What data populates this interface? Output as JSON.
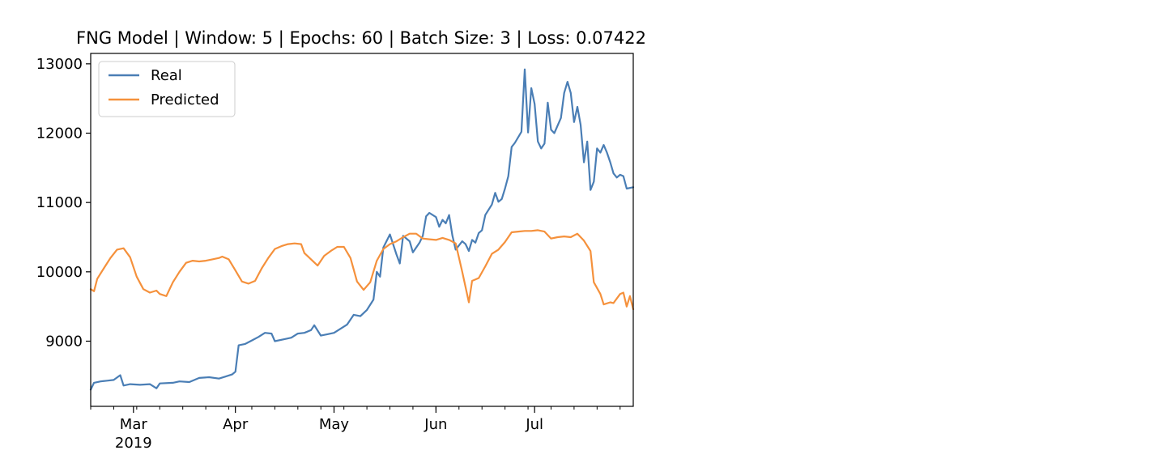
{
  "chart_data": {
    "type": "line",
    "title": "FNG Model | Window: 5 | Epochs: 60 | Batch Size: 3 | Loss: 0.07422",
    "xlabel": "",
    "ylabel": "",
    "x_range": [
      "2019-02-16",
      "2019-07-31"
    ],
    "ylim": [
      8060,
      13150
    ],
    "y_ticks": [
      {
        "value": 9000,
        "label": "9000"
      },
      {
        "value": 10000,
        "label": "10000"
      },
      {
        "value": 11000,
        "label": "11000"
      },
      {
        "value": 12000,
        "label": "12000"
      },
      {
        "value": 13000,
        "label": "13000"
      }
    ],
    "x_major_ticks": [
      {
        "date": "2019-03-01",
        "label": "Mar",
        "sublabel": "2019"
      },
      {
        "date": "2019-04-01",
        "label": "Apr",
        "sublabel": ""
      },
      {
        "date": "2019-05-01",
        "label": "May",
        "sublabel": ""
      },
      {
        "date": "2019-06-01",
        "label": "Jun",
        "sublabel": ""
      },
      {
        "date": "2019-07-01",
        "label": "Jul",
        "sublabel": ""
      }
    ],
    "grid": false,
    "legend_position": "top-left",
    "series": [
      {
        "name": "Real",
        "color": "#4a7eb5",
        "points": [
          [
            "2019-02-16",
            8300
          ],
          [
            "2019-02-17",
            8400
          ],
          [
            "2019-02-19",
            8420
          ],
          [
            "2019-02-21",
            8430
          ],
          [
            "2019-02-23",
            8440
          ],
          [
            "2019-02-25",
            8510
          ],
          [
            "2019-02-26",
            8360
          ],
          [
            "2019-02-28",
            8380
          ],
          [
            "2019-03-03",
            8370
          ],
          [
            "2019-03-06",
            8380
          ],
          [
            "2019-03-08",
            8320
          ],
          [
            "2019-03-09",
            8390
          ],
          [
            "2019-03-13",
            8400
          ],
          [
            "2019-03-15",
            8420
          ],
          [
            "2019-03-18",
            8410
          ],
          [
            "2019-03-21",
            8470
          ],
          [
            "2019-03-24",
            8480
          ],
          [
            "2019-03-27",
            8460
          ],
          [
            "2019-03-29",
            8490
          ],
          [
            "2019-03-31",
            8520
          ],
          [
            "2019-04-01",
            8560
          ],
          [
            "2019-04-02",
            8940
          ],
          [
            "2019-04-04",
            8960
          ],
          [
            "2019-04-06",
            9010
          ],
          [
            "2019-04-08",
            9060
          ],
          [
            "2019-04-10",
            9120
          ],
          [
            "2019-04-12",
            9110
          ],
          [
            "2019-04-13",
            9000
          ],
          [
            "2019-04-16",
            9030
          ],
          [
            "2019-04-18",
            9050
          ],
          [
            "2019-04-20",
            9110
          ],
          [
            "2019-04-22",
            9120
          ],
          [
            "2019-04-24",
            9160
          ],
          [
            "2019-04-25",
            9230
          ],
          [
            "2019-04-27",
            9080
          ],
          [
            "2019-04-29",
            9100
          ],
          [
            "2019-05-01",
            9120
          ],
          [
            "2019-05-03",
            9180
          ],
          [
            "2019-05-05",
            9240
          ],
          [
            "2019-05-07",
            9380
          ],
          [
            "2019-05-09",
            9360
          ],
          [
            "2019-05-11",
            9450
          ],
          [
            "2019-05-13",
            9600
          ],
          [
            "2019-05-14",
            10000
          ],
          [
            "2019-05-15",
            9930
          ],
          [
            "2019-05-16",
            10350
          ],
          [
            "2019-05-18",
            10540
          ],
          [
            "2019-05-20",
            10250
          ],
          [
            "2019-05-21",
            10120
          ],
          [
            "2019-05-22",
            10520
          ],
          [
            "2019-05-24",
            10440
          ],
          [
            "2019-05-25",
            10280
          ],
          [
            "2019-05-27",
            10420
          ],
          [
            "2019-05-28",
            10520
          ],
          [
            "2019-05-29",
            10800
          ],
          [
            "2019-05-30",
            10850
          ],
          [
            "2019-06-01",
            10790
          ],
          [
            "2019-06-02",
            10650
          ],
          [
            "2019-06-03",
            10750
          ],
          [
            "2019-06-04",
            10700
          ],
          [
            "2019-06-05",
            10820
          ],
          [
            "2019-06-06",
            10520
          ],
          [
            "2019-06-07",
            10320
          ],
          [
            "2019-06-09",
            10440
          ],
          [
            "2019-06-10",
            10400
          ],
          [
            "2019-06-11",
            10300
          ],
          [
            "2019-06-12",
            10460
          ],
          [
            "2019-06-13",
            10420
          ],
          [
            "2019-06-14",
            10560
          ],
          [
            "2019-06-15",
            10600
          ],
          [
            "2019-06-16",
            10820
          ],
          [
            "2019-06-18",
            10970
          ],
          [
            "2019-06-19",
            11140
          ],
          [
            "2019-06-20",
            11010
          ],
          [
            "2019-06-21",
            11050
          ],
          [
            "2019-06-22",
            11200
          ],
          [
            "2019-06-23",
            11380
          ],
          [
            "2019-06-24",
            11800
          ],
          [
            "2019-06-25",
            11860
          ],
          [
            "2019-06-27",
            12020
          ],
          [
            "2019-06-28",
            12920
          ],
          [
            "2019-06-29",
            12010
          ],
          [
            "2019-06-30",
            12650
          ],
          [
            "2019-07-01",
            12420
          ],
          [
            "2019-07-02",
            11880
          ],
          [
            "2019-07-03",
            11780
          ],
          [
            "2019-07-04",
            11850
          ],
          [
            "2019-07-05",
            12440
          ],
          [
            "2019-07-06",
            12050
          ],
          [
            "2019-07-07",
            12000
          ],
          [
            "2019-07-09",
            12220
          ],
          [
            "2019-07-10",
            12580
          ],
          [
            "2019-07-11",
            12740
          ],
          [
            "2019-07-12",
            12580
          ],
          [
            "2019-07-13",
            12160
          ],
          [
            "2019-07-14",
            12380
          ],
          [
            "2019-07-15",
            12120
          ],
          [
            "2019-07-16",
            11580
          ],
          [
            "2019-07-17",
            11880
          ],
          [
            "2019-07-18",
            11180
          ],
          [
            "2019-07-19",
            11300
          ],
          [
            "2019-07-20",
            11780
          ],
          [
            "2019-07-21",
            11720
          ],
          [
            "2019-07-22",
            11830
          ],
          [
            "2019-07-23",
            11720
          ],
          [
            "2019-07-24",
            11580
          ],
          [
            "2019-07-25",
            11420
          ],
          [
            "2019-07-26",
            11360
          ],
          [
            "2019-07-27",
            11400
          ],
          [
            "2019-07-28",
            11380
          ],
          [
            "2019-07-29",
            11200
          ],
          [
            "2019-07-31",
            11220
          ]
        ]
      },
      {
        "name": "Predicted",
        "color": "#f5913c",
        "points": [
          [
            "2019-02-16",
            9750
          ],
          [
            "2019-02-17",
            9720
          ],
          [
            "2019-02-18",
            9900
          ],
          [
            "2019-02-20",
            10050
          ],
          [
            "2019-02-22",
            10200
          ],
          [
            "2019-02-24",
            10320
          ],
          [
            "2019-02-26",
            10340
          ],
          [
            "2019-02-28",
            10210
          ],
          [
            "2019-03-02",
            9930
          ],
          [
            "2019-03-04",
            9750
          ],
          [
            "2019-03-06",
            9700
          ],
          [
            "2019-03-08",
            9730
          ],
          [
            "2019-03-09",
            9680
          ],
          [
            "2019-03-11",
            9650
          ],
          [
            "2019-03-13",
            9850
          ],
          [
            "2019-03-15",
            10000
          ],
          [
            "2019-03-17",
            10130
          ],
          [
            "2019-03-19",
            10160
          ],
          [
            "2019-03-21",
            10150
          ],
          [
            "2019-03-23",
            10160
          ],
          [
            "2019-03-25",
            10180
          ],
          [
            "2019-03-27",
            10200
          ],
          [
            "2019-03-28",
            10220
          ],
          [
            "2019-03-30",
            10180
          ],
          [
            "2019-04-01",
            10020
          ],
          [
            "2019-04-03",
            9860
          ],
          [
            "2019-04-05",
            9830
          ],
          [
            "2019-04-07",
            9870
          ],
          [
            "2019-04-09",
            10050
          ],
          [
            "2019-04-11",
            10200
          ],
          [
            "2019-04-13",
            10330
          ],
          [
            "2019-04-15",
            10370
          ],
          [
            "2019-04-17",
            10400
          ],
          [
            "2019-04-19",
            10410
          ],
          [
            "2019-04-21",
            10400
          ],
          [
            "2019-04-22",
            10270
          ],
          [
            "2019-04-24",
            10180
          ],
          [
            "2019-04-26",
            10090
          ],
          [
            "2019-04-28",
            10230
          ],
          [
            "2019-04-30",
            10300
          ],
          [
            "2019-05-02",
            10360
          ],
          [
            "2019-05-04",
            10360
          ],
          [
            "2019-05-06",
            10200
          ],
          [
            "2019-05-08",
            9860
          ],
          [
            "2019-05-10",
            9740
          ],
          [
            "2019-05-12",
            9850
          ],
          [
            "2019-05-14",
            10160
          ],
          [
            "2019-05-16",
            10330
          ],
          [
            "2019-05-18",
            10400
          ],
          [
            "2019-05-20",
            10440
          ],
          [
            "2019-05-22",
            10500
          ],
          [
            "2019-05-24",
            10550
          ],
          [
            "2019-05-26",
            10550
          ],
          [
            "2019-05-28",
            10480
          ],
          [
            "2019-05-30",
            10470
          ],
          [
            "2019-06-01",
            10460
          ],
          [
            "2019-06-03",
            10490
          ],
          [
            "2019-06-05",
            10460
          ],
          [
            "2019-06-07",
            10410
          ],
          [
            "2019-06-09",
            10000
          ],
          [
            "2019-06-11",
            9560
          ],
          [
            "2019-06-12",
            9870
          ],
          [
            "2019-06-14",
            9910
          ],
          [
            "2019-06-16",
            10080
          ],
          [
            "2019-06-18",
            10260
          ],
          [
            "2019-06-20",
            10320
          ],
          [
            "2019-06-22",
            10430
          ],
          [
            "2019-06-24",
            10570
          ],
          [
            "2019-06-26",
            10580
          ],
          [
            "2019-06-28",
            10590
          ],
          [
            "2019-06-30",
            10590
          ],
          [
            "2019-07-02",
            10600
          ],
          [
            "2019-07-04",
            10580
          ],
          [
            "2019-07-06",
            10480
          ],
          [
            "2019-07-08",
            10500
          ],
          [
            "2019-07-10",
            10510
          ],
          [
            "2019-07-12",
            10500
          ],
          [
            "2019-07-14",
            10550
          ],
          [
            "2019-07-16",
            10450
          ],
          [
            "2019-07-18",
            10300
          ],
          [
            "2019-07-19",
            9850
          ],
          [
            "2019-07-21",
            9680
          ],
          [
            "2019-07-22",
            9530
          ],
          [
            "2019-07-24",
            9560
          ],
          [
            "2019-07-25",
            9550
          ],
          [
            "2019-07-27",
            9680
          ],
          [
            "2019-07-28",
            9700
          ],
          [
            "2019-07-29",
            9500
          ],
          [
            "2019-07-30",
            9650
          ],
          [
            "2019-07-31",
            9460
          ]
        ]
      }
    ]
  }
}
